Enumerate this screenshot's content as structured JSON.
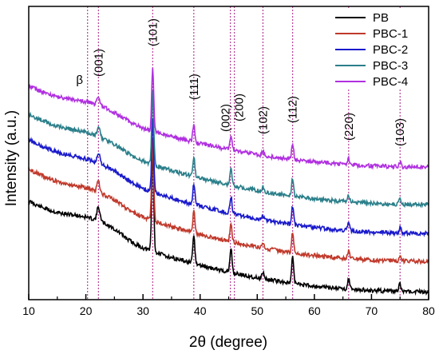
{
  "chart_data": {
    "type": "line",
    "xlabel": "2θ (degree)",
    "ylabel": "Intensity (a.u.)",
    "xlim": [
      10,
      80
    ],
    "xticks": [
      10,
      20,
      30,
      40,
      50,
      60,
      70,
      80
    ],
    "grid": false,
    "legend": "top-right",
    "series": [
      {
        "name": "PB",
        "color": "#000000"
      },
      {
        "name": "PBC-1",
        "color": "#c0392b"
      },
      {
        "name": "PBC-2",
        "color": "#1a1acc"
      },
      {
        "name": "PBC-3",
        "color": "#2a7f8a"
      },
      {
        "name": "PBC-4",
        "color": "#b030e0"
      }
    ],
    "reference_lines": [
      20.3,
      22.2,
      31.7,
      38.9,
      45.3,
      46.0,
      51.0,
      56.2,
      66.0,
      75.0
    ],
    "reference_line_color": "#b0308f",
    "annotations": [
      {
        "text": "β",
        "x": 20.3
      },
      {
        "text": "(001)",
        "x": 22.2
      },
      {
        "text": "(101)",
        "x": 31.7
      },
      {
        "text": "(111)",
        "x": 38.9
      },
      {
        "text": "(002)",
        "x": 45.3
      },
      {
        "text": "(200)",
        "x": 46.0
      },
      {
        "text": "(102)",
        "x": 51.0
      },
      {
        "text": "(112)",
        "x": 56.2
      },
      {
        "text": "(220)",
        "x": 66.0
      },
      {
        "text": "(103)",
        "x": 75.0
      }
    ],
    "peaks": [
      {
        "pos": 22.2,
        "height": 18
      },
      {
        "pos": 31.7,
        "height": 130
      },
      {
        "pos": 38.9,
        "height": 35
      },
      {
        "pos": 45.4,
        "height": 30
      },
      {
        "pos": 51.0,
        "height": 8
      },
      {
        "pos": 56.2,
        "height": 32
      },
      {
        "pos": 66.0,
        "height": 13
      },
      {
        "pos": 75.0,
        "height": 10
      }
    ]
  }
}
